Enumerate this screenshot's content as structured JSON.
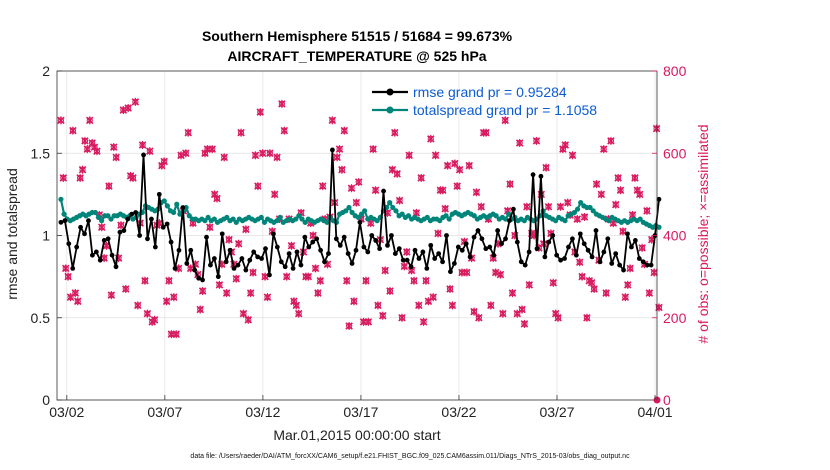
{
  "colors": {
    "rmse": "#000000",
    "spread": "#00857a",
    "obs": "#d81b60",
    "legend_text": "#0b5bd3",
    "grid": "#e0e0e0"
  },
  "footer": "data file: /Users/raeder/DAI/ATM_forcXX/CAM6_setup/f.e21.FHIST_BGC.f09_025.CAM6assim.011/Diags_NTrS_2015-03/obs_diag_output.nc",
  "chart_data": {
    "type": "line",
    "title": "Southern Hemisphere 51515 / 51684 = 99.673%",
    "subtitle": "AIRCRAFT_TEMPERATURE @ 525 hPa",
    "xlabel": "Mar.01,2015 00:00:00 start",
    "ylabel": "rmse and totalspread",
    "ylabel_right": "# of obs: o=possible; ×=assimilated",
    "x_ticks": [
      "03/02",
      "03/07",
      "03/12",
      "03/17",
      "03/22",
      "03/27",
      "04/01"
    ],
    "x_tick_positions": [
      1,
      6,
      11,
      16,
      21,
      26,
      31
    ],
    "xlim": [
      0.5,
      31.1
    ],
    "ylim": [
      0,
      2
    ],
    "yticks": [
      0,
      0.5,
      1,
      1.5,
      2
    ],
    "ylim_right": [
      0,
      800
    ],
    "yticks_right": [
      0,
      200,
      400,
      600,
      800
    ],
    "grid": true,
    "legend_position": "top-right",
    "series": [
      {
        "name": "rmse grand pr = 0.95284",
        "axis": "left",
        "values": [
          1.08,
          1.09,
          0.95,
          0.8,
          0.93,
          1.05,
          1.01,
          1.09,
          0.88,
          0.9,
          0.85,
          0.97,
          0.98,
          0.88,
          0.81,
          1.02,
          1.03,
          1.1,
          1.13,
          1.14,
          1.0,
          1.49,
          0.98,
          1.1,
          0.93,
          1.25,
          1.05,
          1.07,
          0.96,
          0.8,
          0.91,
          1.17,
          0.83,
          0.91,
          0.79,
          0.74,
          0.73,
          0.99,
          0.82,
          0.86,
          0.75,
          1.01,
          0.84,
          0.91,
          0.8,
          0.82,
          0.86,
          0.79,
          0.85,
          0.9,
          0.87,
          0.86,
          0.92,
          0.76,
          1.01,
          0.93,
          0.84,
          0.81,
          0.89,
          0.8,
          0.9,
          0.82,
          0.99,
          0.93,
          0.96,
          0.98,
          0.91,
          0.84,
          0.89,
          1.52,
          0.98,
          0.94,
          0.99,
          0.89,
          0.83,
          0.91,
          1.08,
          0.93,
          0.9,
          1.0,
          0.97,
          0.92,
          1.27,
          0.94,
          1.0,
          0.89,
          0.92,
          0.85,
          0.85,
          0.81,
          0.91,
          0.86,
          0.9,
          0.8,
          0.94,
          0.86,
          0.89,
          0.84,
          1.0,
          0.78,
          0.83,
          0.93,
          0.91,
          0.95,
          0.87,
          0.99,
          1.03,
          0.98,
          0.92,
          0.93,
          0.88,
          1.03,
          0.95,
          0.98,
          1.09,
          1.16,
          0.96,
          0.84,
          0.82,
          0.9,
          1.37,
          0.92,
          1.36,
          0.87,
          0.96,
          1.0,
          0.88,
          0.85,
          0.86,
          0.93,
          0.98,
          0.88,
          1.01,
          0.95,
          0.91,
          0.87,
          1.03,
          0.84,
          0.9,
          0.98,
          0.83,
          0.89,
          0.82,
          0.79,
          1.01,
          0.93,
          0.97,
          0.86,
          0.84,
          0.82,
          0.82,
          1.0,
          1.22
        ]
      },
      {
        "name": "totalspread grand pr = 1.1058",
        "axis": "left",
        "values": [
          1.22,
          1.13,
          1.1,
          1.09,
          1.1,
          1.11,
          1.12,
          1.13,
          1.12,
          1.13,
          1.14,
          1.14,
          1.11,
          1.09,
          1.12,
          1.12,
          1.1,
          1.12,
          1.12,
          1.13,
          1.12,
          1.11,
          1.12,
          1.1,
          1.11,
          1.13,
          1.14,
          1.18,
          1.17,
          1.16,
          1.15,
          1.16,
          1.2,
          1.21,
          1.18,
          1.15,
          1.14,
          1.19,
          1.13,
          1.15,
          1.17,
          1.12,
          1.1,
          1.1,
          1.09,
          1.1,
          1.09,
          1.11,
          1.09,
          1.1,
          1.08,
          1.09,
          1.1,
          1.11,
          1.09,
          1.1,
          1.08,
          1.1,
          1.09,
          1.1,
          1.11,
          1.1,
          1.09,
          1.1,
          1.11,
          1.08,
          1.1,
          1.09,
          1.08,
          1.09,
          1.11,
          1.08,
          1.09,
          1.1,
          1.09,
          1.1,
          1.12,
          1.1,
          1.08,
          1.1,
          1.09,
          1.08,
          1.09,
          1.1,
          1.09,
          1.08,
          1.11,
          1.09,
          1.08,
          1.13,
          1.14,
          1.15,
          1.17,
          1.14,
          1.12,
          1.11,
          1.13,
          1.15,
          1.1,
          1.11,
          1.1,
          1.09,
          1.11,
          1.15,
          1.17,
          1.2,
          1.17,
          1.15,
          1.12,
          1.13,
          1.11,
          1.12,
          1.1,
          1.11,
          1.1,
          1.09,
          1.1,
          1.11,
          1.09,
          1.1,
          1.1,
          1.09,
          1.11,
          1.12,
          1.1,
          1.13,
          1.14,
          1.13,
          1.12,
          1.13,
          1.14,
          1.13,
          1.12,
          1.1,
          1.11,
          1.12,
          1.11,
          1.12,
          1.13,
          1.12,
          1.1,
          1.11,
          1.1,
          1.13,
          1.1,
          1.11,
          1.09,
          1.1,
          1.09,
          1.11,
          1.1,
          1.09,
          1.1,
          1.12,
          1.15,
          1.12,
          1.11,
          1.1,
          1.09,
          1.11,
          1.1,
          1.09,
          1.12,
          1.13,
          1.14,
          1.16,
          1.2,
          1.18,
          1.17,
          1.17,
          1.15,
          1.13,
          1.12,
          1.11,
          1.1,
          1.09,
          1.11,
          1.1,
          1.09,
          1.08,
          1.09,
          1.08,
          1.09,
          1.1,
          1.09,
          1.1,
          1.08,
          1.07,
          1.06,
          1.05,
          1.06,
          1.05
        ]
      },
      {
        "name": "possible",
        "axis": "right",
        "marker": "o",
        "values": [
          680,
          540,
          320,
          300,
          250,
          655,
          260,
          240,
          540,
          560,
          630,
          610,
          680,
          625,
          615,
          605,
          450,
          420,
          345,
          375,
          520,
          255,
          615,
          590,
          345,
          425,
          705,
          270,
          710,
          545,
          540,
          725,
          230,
          430,
          620,
          290,
          210,
          605,
          190,
          195,
          425,
          430,
          570,
          580,
          240,
          290,
          160,
          250,
          160,
          320,
          595,
          460,
          600,
          650,
          320,
          430,
          330,
          305,
          220,
          265,
          600,
          610,
          420,
          610,
          500,
          490,
          280,
          330,
          590,
          260,
          390,
          360,
          330,
          295,
          380,
          650,
          210,
          415,
          195,
          260,
          310,
          595,
          520,
          700,
          600,
          300,
          250,
          600,
          410,
          500,
          590,
          440,
          720,
          655,
          300,
          440,
          375,
          240,
          230,
          210,
          455,
          360,
          300,
          300,
          430,
          400,
          320,
          260,
          290,
          520,
          440,
          330,
          445,
          680,
          480,
          590,
          610,
          560,
          655,
          290,
          180,
          515,
          240,
          480,
          530,
          440,
          190,
          290,
          190,
          430,
          610,
          510,
          230,
          390,
          205,
          315,
          455,
          265,
          560,
          650,
          550,
          485,
          200,
          325,
          360,
          595,
          315,
          290,
          455,
          230,
          540,
          190,
          290,
          240,
          635,
          250,
          595,
          405,
          510,
          510,
          465,
          570,
          270,
          230,
          575,
          520,
          560,
          310,
          385,
          310,
          570,
          345,
          215,
          505,
          200,
          470,
          650,
          650,
          440,
          230,
          345,
          310,
          380,
          305,
          210,
          680,
          460,
          525,
          260,
          400,
          210,
          625,
          220,
          185,
          470,
          280,
          405,
          400,
          630,
          370,
          500,
          380,
          565,
          470,
          405,
          285,
          210,
          200,
          470,
          610,
          620,
          480,
          450,
          595,
          360,
          440,
          335,
          300,
          445,
          200,
          290,
          285,
          270,
          525,
          340,
          500,
          610,
          260,
          440,
          630,
          430,
          475,
          540,
          510,
          410,
          250,
          280,
          320,
          450,
          540,
          510,
          500,
          370,
          330,
          460,
          260,
          390,
          310,
          660,
          225
        ]
      },
      {
        "name": "assimilated",
        "axis": "right",
        "marker": "x",
        "values": [
          680,
          540,
          320,
          300,
          250,
          655,
          260,
          240,
          540,
          560,
          630,
          610,
          680,
          625,
          615,
          605,
          450,
          420,
          345,
          375,
          520,
          255,
          615,
          590,
          345,
          425,
          705,
          270,
          710,
          545,
          540,
          725,
          230,
          430,
          620,
          290,
          210,
          605,
          190,
          195,
          425,
          430,
          570,
          580,
          240,
          290,
          160,
          250,
          160,
          320,
          595,
          460,
          600,
          650,
          320,
          430,
          330,
          305,
          220,
          265,
          600,
          610,
          420,
          610,
          500,
          490,
          280,
          330,
          590,
          260,
          390,
          360,
          330,
          295,
          380,
          650,
          210,
          415,
          195,
          260,
          310,
          595,
          520,
          700,
          600,
          300,
          250,
          600,
          410,
          500,
          590,
          440,
          720,
          655,
          300,
          440,
          375,
          240,
          230,
          210,
          455,
          360,
          300,
          300,
          430,
          400,
          320,
          260,
          290,
          520,
          440,
          330,
          445,
          680,
          480,
          590,
          610,
          560,
          655,
          290,
          180,
          515,
          240,
          480,
          530,
          440,
          190,
          290,
          190,
          430,
          610,
          510,
          230,
          390,
          205,
          315,
          455,
          265,
          560,
          650,
          550,
          485,
          200,
          325,
          360,
          595,
          315,
          290,
          455,
          230,
          540,
          190,
          290,
          240,
          635,
          250,
          595,
          405,
          510,
          510,
          465,
          570,
          270,
          230,
          575,
          520,
          560,
          310,
          385,
          310,
          570,
          345,
          215,
          505,
          200,
          470,
          650,
          650,
          440,
          230,
          345,
          310,
          380,
          305,
          210,
          680,
          460,
          525,
          260,
          400,
          210,
          625,
          220,
          185,
          470,
          280,
          405,
          400,
          630,
          370,
          500,
          380,
          565,
          470,
          405,
          285,
          210,
          200,
          470,
          610,
          620,
          480,
          450,
          595,
          360,
          440,
          335,
          300,
          445,
          200,
          290,
          285,
          270,
          525,
          340,
          500,
          610,
          260,
          440,
          630,
          430,
          475,
          540,
          510,
          410,
          250,
          280,
          320,
          450,
          540,
          510,
          500,
          370,
          330,
          460,
          260,
          390,
          310,
          660,
          225
        ]
      }
    ]
  }
}
